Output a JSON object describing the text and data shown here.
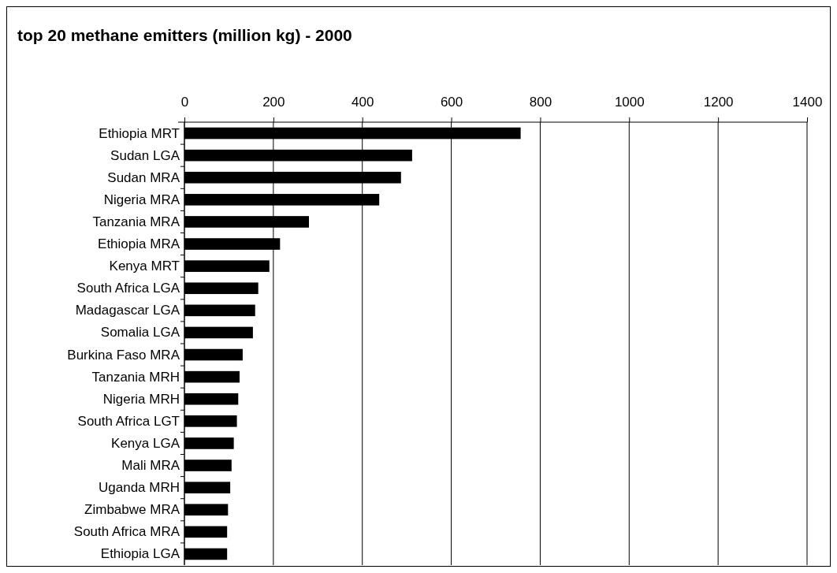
{
  "chart_data": {
    "type": "bar",
    "orientation": "horizontal",
    "title": "top 20 methane emitters (million kg) - 2000",
    "categories": [
      "Ethiopia MRT",
      "Sudan LGA",
      "Sudan MRA",
      "Nigeria MRA",
      "Tanzania MRA",
      "Ethiopia MRA",
      "Kenya MRT",
      "South Africa LGA",
      "Madagascar LGA",
      "Somalia LGA",
      "Burkina Faso MRA",
      "Tanzania MRH",
      "Nigeria MRH",
      "South Africa LGT",
      "Kenya LGA",
      "Mali MRA",
      "Uganda MRH",
      "Zimbabwe MRA",
      "South Africa MRA",
      "Ethiopia LGA"
    ],
    "values": [
      756,
      512,
      487,
      438,
      280,
      215,
      191,
      166,
      159,
      154,
      131,
      124,
      121,
      118,
      111,
      106,
      103,
      98,
      96,
      96
    ],
    "color": "#000000",
    "xlim": [
      0,
      1400
    ],
    "xticks": [
      0,
      200,
      400,
      600,
      800,
      1000,
      1200,
      1400
    ],
    "grid": "x"
  }
}
